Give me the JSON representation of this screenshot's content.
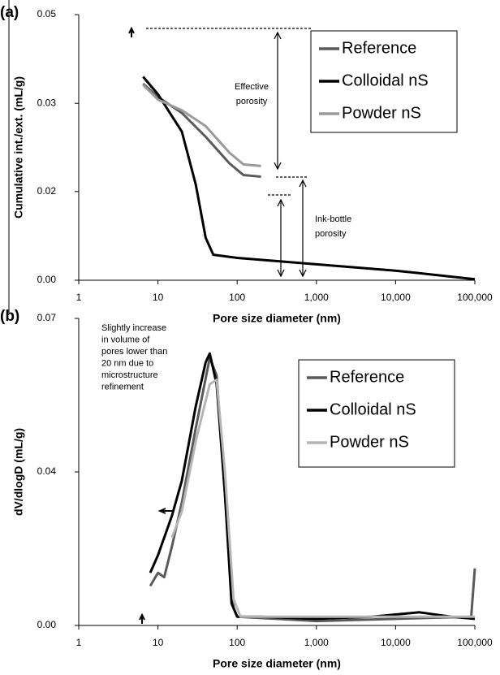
{
  "chart_data": [
    {
      "type": "line",
      "panel_label": "(a)",
      "xlabel": "Pore size diameter (nm)",
      "ylabel": "Cumulative int./ext. (mL/g)",
      "xscale": "log",
      "xlim": [
        1,
        100000
      ],
      "xticks": [
        1,
        10,
        100,
        {
          "value": 1000,
          "label": "1,000"
        },
        {
          "value": 10000,
          "label": "10,000"
        },
        {
          "value": 100000,
          "label": "100,000"
        }
      ],
      "ylim": [
        0,
        0.05
      ],
      "yticks": [
        {
          "value": 0,
          "label": "0.00"
        },
        {
          "value": 0.0167,
          "label": "0.02"
        },
        {
          "value": 0.0333,
          "label": "0.03"
        },
        {
          "value": 0.05,
          "label": "0.05"
        }
      ],
      "legend": "upper right",
      "annotations": [
        {
          "lines": [
            "Effective",
            "porosity"
          ]
        },
        {
          "lines": [
            "Ink-bottle",
            "porosity"
          ]
        }
      ],
      "series": [
        {
          "name": "Reference",
          "color": "#5a5a5a",
          "x": [
            6.5,
            10,
            20,
            40,
            80,
            120,
            200
          ],
          "values": [
            0.037,
            0.0345,
            0.0315,
            0.027,
            0.022,
            0.0198,
            0.0195
          ]
        },
        {
          "name": "Colloidal nS",
          "color": "#000000",
          "x": [
            6.5,
            10,
            20,
            30,
            40,
            50,
            100,
            1000,
            10000,
            100000
          ],
          "values": [
            0.0383,
            0.035,
            0.028,
            0.018,
            0.008,
            0.0048,
            0.0042,
            0.003,
            0.0018,
            0.0002
          ]
        },
        {
          "name": "Powder nS",
          "color": "#9a9a9a",
          "x": [
            6.5,
            10,
            20,
            40,
            80,
            120,
            200
          ],
          "values": [
            0.0368,
            0.034,
            0.032,
            0.029,
            0.024,
            0.0218,
            0.0215
          ]
        }
      ]
    },
    {
      "type": "line",
      "panel_label": "(b)",
      "xlabel": "Pore size diameter (nm)",
      "ylabel": "dV/dlogD (mL/g)",
      "xscale": "log",
      "xlim": [
        1,
        100000
      ],
      "xticks": [
        1,
        10,
        100,
        {
          "value": 1000,
          "label": "1,000"
        },
        {
          "value": 10000,
          "label": "10,000"
        },
        {
          "value": 100000,
          "label": "100,000"
        }
      ],
      "ylim": [
        0,
        0.07
      ],
      "yticks": [
        {
          "value": 0,
          "label": "0.00"
        },
        {
          "value": 0.035,
          "label": "0.04"
        },
        {
          "value": 0.07,
          "label": "0.07"
        }
      ],
      "legend": "upper right",
      "annotations": [
        {
          "lines": [
            "Slightly increase",
            "in volume of",
            "pores lower than",
            "20 nm due to",
            "microstructure",
            "refinement"
          ]
        }
      ],
      "series": [
        {
          "name": "Reference",
          "color": "#5a5a5a",
          "x": [
            8,
            10,
            12,
            15,
            20,
            30,
            45,
            55,
            70,
            90,
            100,
            1000,
            10000,
            90000,
            100000
          ],
          "values": [
            0.009,
            0.012,
            0.011,
            0.018,
            0.028,
            0.045,
            0.061,
            0.057,
            0.03,
            0.004,
            0.002,
            0.001,
            0.0015,
            0.002,
            0.013
          ]
        },
        {
          "name": "Colloidal nS",
          "color": "#000000",
          "x": [
            8,
            10,
            15,
            20,
            30,
            40,
            45,
            55,
            70,
            85,
            100,
            200,
            1000,
            5000,
            20000,
            50000,
            100000
          ],
          "values": [
            0.012,
            0.016,
            0.025,
            0.033,
            0.05,
            0.06,
            0.062,
            0.055,
            0.03,
            0.005,
            0.002,
            0.002,
            0.0015,
            0.002,
            0.003,
            0.002,
            0.0015
          ]
        },
        {
          "name": "Powder nS",
          "color": "#b5b5b5",
          "x": [
            15,
            20,
            30,
            45,
            55,
            70,
            90,
            110,
            1000,
            10000,
            100000
          ],
          "values": [
            0.02,
            0.026,
            0.042,
            0.055,
            0.056,
            0.035,
            0.006,
            0.002,
            0.002,
            0.002,
            0.002
          ]
        }
      ]
    }
  ]
}
